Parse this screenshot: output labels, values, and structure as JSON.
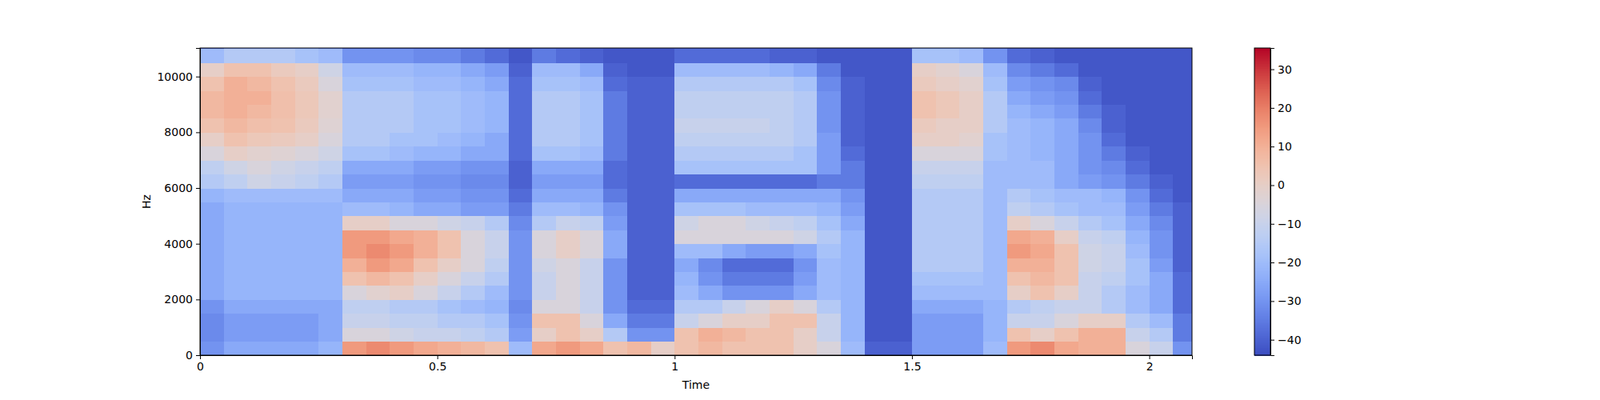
{
  "chart_data": {
    "type": "heatmap",
    "x_label": "Time",
    "y_label": "Hz",
    "xlim": [
      0,
      2.09
    ],
    "ylim": [
      0,
      11025
    ],
    "xticks": [
      0,
      0.5,
      1,
      1.5,
      2
    ],
    "yticks": [
      0,
      2000,
      4000,
      6000,
      8000,
      10000
    ],
    "zlim": [
      -44,
      35.5
    ],
    "zticks": [
      {
        "value": -40,
        "label": "−40"
      },
      {
        "value": -30,
        "label": "−30"
      },
      {
        "value": -20,
        "label": "−20"
      },
      {
        "value": -10,
        "label": "−10"
      },
      0,
      10,
      20,
      30
    ],
    "x_edges": [
      0,
      0.05,
      0.1,
      0.15,
      0.2,
      0.25,
      0.3,
      0.35,
      0.4,
      0.45,
      0.5,
      0.55,
      0.6,
      0.65,
      0.7,
      0.75,
      0.8,
      0.85,
      0.9,
      0.95,
      1,
      1.05,
      1.1,
      1.15,
      1.2,
      1.25,
      1.3,
      1.35,
      1.4,
      1.45,
      1.5,
      1.55,
      1.6,
      1.65,
      1.7,
      1.75,
      1.8,
      1.85,
      1.9,
      1.95,
      2,
      2.05,
      2.1
    ],
    "y_edges": [
      0,
      500,
      1000,
      1500,
      2000,
      2500,
      3000,
      3500,
      4000,
      4500,
      5000,
      5500,
      6000,
      6500,
      7000,
      7500,
      8000,
      8500,
      9000,
      9500,
      10000,
      10500,
      11000,
      11500
    ],
    "z": [
      [
        -30,
        -25,
        -25,
        -25,
        -25,
        -22,
        15,
        18,
        15,
        12,
        10,
        8,
        5,
        -20,
        12,
        15,
        12,
        5,
        8,
        0,
        5,
        8,
        5,
        5,
        5,
        0,
        -5,
        -20,
        -40,
        -40,
        -28,
        -28,
        -28,
        -20,
        15,
        18,
        12,
        10,
        10,
        -5,
        -10,
        -30
      ],
      [
        -32,
        -28,
        -28,
        -28,
        -28,
        -25,
        -5,
        -5,
        -8,
        -10,
        -10,
        -12,
        -15,
        -28,
        0,
        5,
        0,
        -15,
        -30,
        -30,
        5,
        10,
        8,
        5,
        5,
        0,
        -10,
        -22,
        -42,
        -42,
        -28,
        -28,
        -28,
        -22,
        5,
        0,
        5,
        10,
        10,
        -10,
        -15,
        -35
      ],
      [
        -32,
        -28,
        -28,
        -28,
        -28,
        -25,
        -10,
        -10,
        -12,
        -12,
        -15,
        -15,
        -18,
        -30,
        5,
        5,
        -5,
        -25,
        -35,
        -35,
        -10,
        -5,
        0,
        0,
        5,
        5,
        -10,
        -22,
        -42,
        -42,
        -28,
        -28,
        -28,
        -22,
        -10,
        -10,
        -5,
        0,
        0,
        -15,
        -20,
        -35
      ],
      [
        -30,
        -25,
        -25,
        -25,
        -25,
        -25,
        -12,
        -12,
        -15,
        -15,
        -18,
        -20,
        -22,
        -32,
        -5,
        -5,
        -10,
        -30,
        -38,
        -38,
        -15,
        -15,
        -10,
        -5,
        0,
        -5,
        -15,
        -22,
        -42,
        -42,
        -25,
        -25,
        -25,
        -22,
        -15,
        -12,
        -10,
        -10,
        -15,
        -20,
        -25,
        -38
      ],
      [
        -25,
        -22,
        -22,
        -22,
        -22,
        -22,
        -5,
        -2,
        0,
        -5,
        -10,
        -15,
        -20,
        -30,
        -10,
        -5,
        -10,
        -30,
        -40,
        -40,
        -20,
        -25,
        -30,
        -30,
        -30,
        -25,
        -20,
        -22,
        -42,
        -42,
        -20,
        -20,
        -20,
        -20,
        0,
        5,
        0,
        -10,
        -15,
        -20,
        -25,
        -38
      ],
      [
        -25,
        -22,
        -22,
        -22,
        -22,
        -22,
        5,
        8,
        5,
        0,
        -5,
        -10,
        -15,
        -30,
        -10,
        -5,
        -10,
        -30,
        -40,
        -40,
        -22,
        -30,
        -35,
        -35,
        -35,
        -28,
        -20,
        -22,
        -42,
        -42,
        -18,
        -18,
        -18,
        -20,
        5,
        8,
        5,
        -10,
        -12,
        -18,
        -25,
        -38
      ],
      [
        -25,
        -22,
        -22,
        -22,
        -22,
        -22,
        10,
        15,
        12,
        5,
        0,
        -5,
        -12,
        -30,
        -8,
        -5,
        -10,
        -30,
        -40,
        -40,
        -25,
        -32,
        -38,
        -38,
        -38,
        -30,
        -20,
        -22,
        -42,
        -42,
        -15,
        -15,
        -15,
        -20,
        10,
        10,
        5,
        -8,
        -10,
        -18,
        -28,
        -40
      ],
      [
        -25,
        -22,
        -22,
        -22,
        -22,
        -22,
        15,
        18,
        15,
        10,
        5,
        -5,
        -10,
        -30,
        -5,
        0,
        -5,
        -25,
        -40,
        -40,
        -20,
        -20,
        -25,
        -28,
        -28,
        -25,
        -18,
        -22,
        -42,
        -42,
        -15,
        -15,
        -15,
        -20,
        15,
        12,
        5,
        -8,
        -10,
        -20,
        -30,
        -40
      ],
      [
        -25,
        -22,
        -22,
        -22,
        -22,
        -22,
        15,
        15,
        12,
        10,
        5,
        -5,
        -10,
        -30,
        -5,
        0,
        -5,
        -25,
        -40,
        -40,
        -5,
        -5,
        -5,
        -5,
        -5,
        -8,
        -15,
        -22,
        -42,
        -42,
        -15,
        -15,
        -15,
        -20,
        12,
        10,
        0,
        -10,
        -12,
        -22,
        -30,
        -40
      ],
      [
        -25,
        -22,
        -22,
        -22,
        -22,
        -22,
        0,
        0,
        -5,
        -5,
        -8,
        -10,
        -15,
        -32,
        -15,
        -10,
        -12,
        -28,
        -40,
        -40,
        -8,
        -5,
        -5,
        -8,
        -10,
        -12,
        -18,
        -25,
        -42,
        -42,
        -15,
        -15,
        -15,
        -20,
        0,
        -5,
        -10,
        -15,
        -18,
        -25,
        -32,
        -40
      ],
      [
        -25,
        -22,
        -22,
        -22,
        -22,
        -22,
        -20,
        -20,
        -22,
        -25,
        -25,
        -28,
        -28,
        -35,
        -20,
        -20,
        -22,
        -30,
        -40,
        -40,
        -18,
        -18,
        -18,
        -20,
        -20,
        -20,
        -22,
        -28,
        -42,
        -42,
        -15,
        -15,
        -15,
        -20,
        -12,
        -15,
        -18,
        -20,
        -20,
        -28,
        -35,
        -40
      ],
      [
        -22,
        -20,
        -20,
        -20,
        -20,
        -20,
        -25,
        -25,
        -25,
        -28,
        -28,
        -30,
        -30,
        -38,
        -25,
        -25,
        -25,
        -35,
        -40,
        -40,
        -25,
        -25,
        -25,
        -25,
        -25,
        -25,
        -25,
        -30,
        -42,
        -42,
        -15,
        -15,
        -15,
        -20,
        -15,
        -18,
        -20,
        -20,
        -22,
        -30,
        -38,
        -42
      ],
      [
        -15,
        -12,
        -8,
        -10,
        -12,
        -15,
        -28,
        -28,
        -28,
        -30,
        -30,
        -32,
        -32,
        -40,
        -28,
        -28,
        -28,
        -38,
        -40,
        -40,
        -38,
        -38,
        -38,
        -38,
        -38,
        -38,
        -35,
        -35,
        -42,
        -42,
        -12,
        -12,
        -12,
        -20,
        -20,
        -20,
        -25,
        -28,
        -30,
        -35,
        -40,
        -42
      ],
      [
        -12,
        -8,
        -5,
        -8,
        -10,
        -12,
        -25,
        -25,
        -25,
        -28,
        -28,
        -30,
        -30,
        -40,
        -25,
        -25,
        -25,
        -38,
        -40,
        -40,
        -18,
        -18,
        -18,
        -18,
        -18,
        -18,
        -28,
        -35,
        -42,
        -42,
        -10,
        -10,
        -10,
        -20,
        -20,
        -20,
        -25,
        -30,
        -32,
        -38,
        -42,
        -42
      ],
      [
        -5,
        0,
        -2,
        -3,
        -5,
        -8,
        -18,
        -18,
        -20,
        -22,
        -22,
        -25,
        -25,
        -38,
        -18,
        -18,
        -20,
        -35,
        -40,
        -40,
        -15,
        -15,
        -15,
        -15,
        -15,
        -18,
        -28,
        -38,
        -42,
        -42,
        -5,
        -5,
        -5,
        -18,
        -20,
        -22,
        -25,
        -30,
        -35,
        -40,
        -42,
        -42
      ],
      [
        0,
        5,
        3,
        2,
        0,
        -5,
        -15,
        -15,
        -18,
        -18,
        -20,
        -22,
        -25,
        -38,
        -15,
        -15,
        -18,
        -35,
        -40,
        -40,
        -12,
        -12,
        -12,
        -12,
        -12,
        -15,
        -28,
        -40,
        -42,
        -42,
        0,
        0,
        -2,
        -18,
        -20,
        -22,
        -25,
        -30,
        -38,
        -42,
        -42,
        -42
      ],
      [
        5,
        8,
        6,
        5,
        2,
        -3,
        -15,
        -15,
        -15,
        -18,
        -18,
        -20,
        -22,
        -38,
        -15,
        -15,
        -18,
        -35,
        -40,
        -40,
        -10,
        -10,
        -10,
        -10,
        -12,
        -15,
        -30,
        -40,
        -42,
        -42,
        2,
        0,
        0,
        -15,
        -20,
        -22,
        -25,
        -32,
        -40,
        -42,
        -42,
        -42
      ],
      [
        8,
        10,
        8,
        6,
        3,
        -2,
        -15,
        -15,
        -15,
        -18,
        -18,
        -20,
        -22,
        -38,
        -15,
        -15,
        -18,
        -35,
        -40,
        -40,
        -12,
        -12,
        -12,
        -12,
        -12,
        -15,
        -30,
        -40,
        -42,
        -42,
        5,
        3,
        0,
        -15,
        -22,
        -25,
        -28,
        -35,
        -40,
        -42,
        -42,
        -42
      ],
      [
        8,
        10,
        10,
        6,
        3,
        -2,
        -15,
        -15,
        -15,
        -18,
        -18,
        -20,
        -22,
        -38,
        -15,
        -15,
        -18,
        -35,
        -40,
        -40,
        -12,
        -12,
        -12,
        -12,
        -12,
        -15,
        -30,
        -40,
        -42,
        -42,
        5,
        3,
        0,
        -15,
        -25,
        -28,
        -30,
        -38,
        -42,
        -42,
        -42,
        -42
      ],
      [
        5,
        10,
        8,
        5,
        2,
        -5,
        -18,
        -18,
        -18,
        -20,
        -20,
        -22,
        -25,
        -38,
        -18,
        -18,
        -20,
        -38,
        -40,
        -40,
        -15,
        -15,
        -15,
        -15,
        -15,
        -18,
        -32,
        -40,
        -42,
        -42,
        2,
        0,
        -2,
        -18,
        -28,
        -30,
        -32,
        -40,
        -42,
        -42,
        -42,
        -42
      ],
      [
        0,
        5,
        5,
        2,
        0,
        -8,
        -20,
        -20,
        -20,
        -22,
        -22,
        -25,
        -28,
        -40,
        -20,
        -20,
        -25,
        -40,
        -42,
        -42,
        -20,
        -20,
        -20,
        -20,
        -22,
        -25,
        -35,
        -42,
        -42,
        -42,
        0,
        -2,
        -5,
        -20,
        -32,
        -35,
        -38,
        -42,
        -42,
        -42,
        -42,
        -42
      ],
      [
        -20,
        -15,
        -15,
        -15,
        -18,
        -20,
        -30,
        -30,
        -30,
        -32,
        -32,
        -35,
        -38,
        -42,
        -35,
        -38,
        -40,
        -42,
        -42,
        -42,
        -38,
        -38,
        -38,
        -38,
        -40,
        -40,
        -42,
        -42,
        -42,
        -42,
        -18,
        -18,
        -20,
        -30,
        -38,
        -40,
        -42,
        -42,
        -42,
        -42,
        -42,
        -42
      ],
      [
        -40,
        -30,
        -30,
        -30,
        -30,
        -35,
        -42,
        -42,
        -42,
        -42,
        -42,
        -42,
        -42,
        -42,
        -42,
        -42,
        -42,
        -42,
        -42,
        -42,
        -42,
        -42,
        -42,
        -42,
        -42,
        -42,
        -42,
        -42,
        -42,
        -42,
        -30,
        -30,
        -30,
        -40,
        -42,
        -42,
        -42,
        -42,
        -42,
        -42,
        -42,
        -42
      ]
    ]
  }
}
